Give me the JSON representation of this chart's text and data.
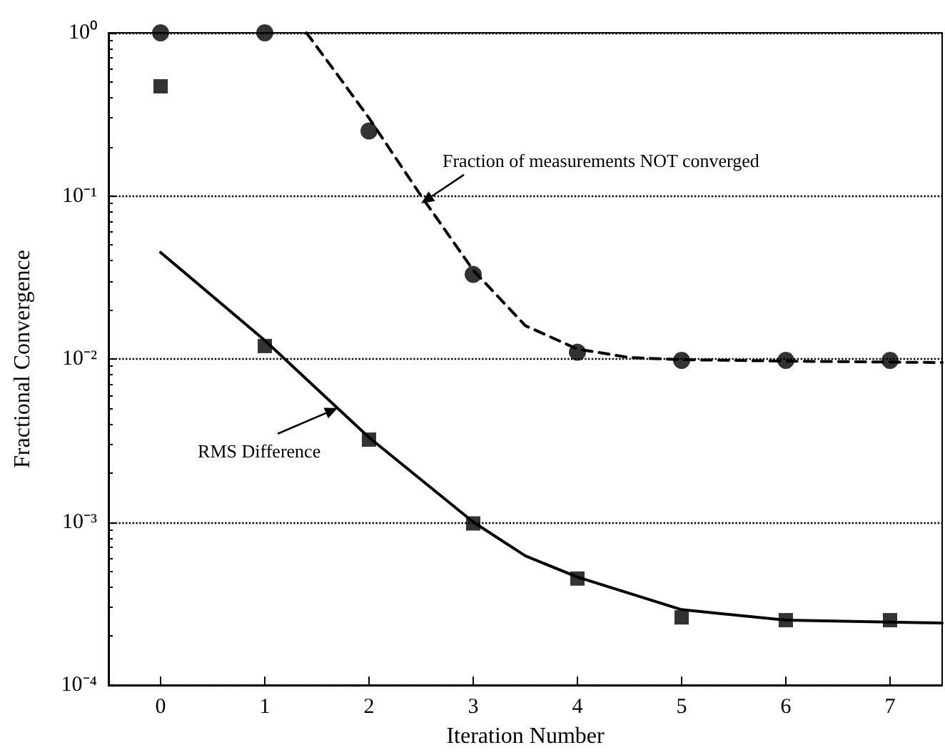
{
  "chart_data": {
    "type": "scatter",
    "xlabel": "Iteration Number",
    "ylabel": "Fractional Convergence",
    "xlim": [
      -0.5,
      7.5
    ],
    "xticks": [
      0,
      1,
      2,
      3,
      4,
      5,
      6,
      7
    ],
    "ylim": [
      0.0001,
      1
    ],
    "log": "y",
    "yticks": [
      {
        "value": 0.0001,
        "label": "10⁻⁴"
      },
      {
        "value": 0.001,
        "label": "10⁻³"
      },
      {
        "value": 0.01,
        "label": "10⁻²"
      },
      {
        "value": 0.1,
        "label": "10⁻¹"
      },
      {
        "value": 1,
        "label": "10⁰"
      }
    ],
    "grid": "y",
    "series": [
      {
        "marker": "circle",
        "color": "#000000",
        "x": [
          0,
          1,
          2,
          3,
          4,
          5,
          6,
          7
        ],
        "values": [
          1,
          1,
          0.25,
          0.033,
          0.011,
          0.0098,
          0.0098,
          0.0098
        ]
      },
      {
        "marker": "square",
        "color": "#000000",
        "x": [
          0,
          1,
          2,
          3,
          4,
          5,
          6,
          7
        ],
        "values": [
          0.47,
          0.012,
          0.0032,
          0.00098,
          0.00045,
          0.00026,
          0.00025,
          0.00025
        ]
      },
      {
        "type": "line",
        "marker": "none",
        "line_style": "dashed",
        "color": "#000000",
        "x": [
          1.4,
          1.7,
          2,
          2.5,
          3,
          3.5,
          4,
          4.5,
          5,
          6,
          7.5
        ],
        "values": [
          1,
          0.55,
          0.3,
          0.1,
          0.035,
          0.016,
          0.0115,
          0.0102,
          0.0099,
          0.0097,
          0.0095
        ]
      },
      {
        "type": "line",
        "marker": "none",
        "line_style": "solid",
        "color": "#000000",
        "x": [
          0,
          1,
          2,
          3,
          3.5,
          4,
          5,
          6,
          7.5
        ],
        "values": [
          0.045,
          0.013,
          0.0033,
          0.001,
          0.00062,
          0.00046,
          0.00029,
          0.00025,
          0.00024
        ]
      }
    ],
    "annotations": [
      {
        "text": "Fraction of measurements NOT converged",
        "x": 2.5,
        "y": 0.09
      },
      {
        "text": "RMS Difference",
        "x": 1.7,
        "y": 0.005
      }
    ]
  }
}
